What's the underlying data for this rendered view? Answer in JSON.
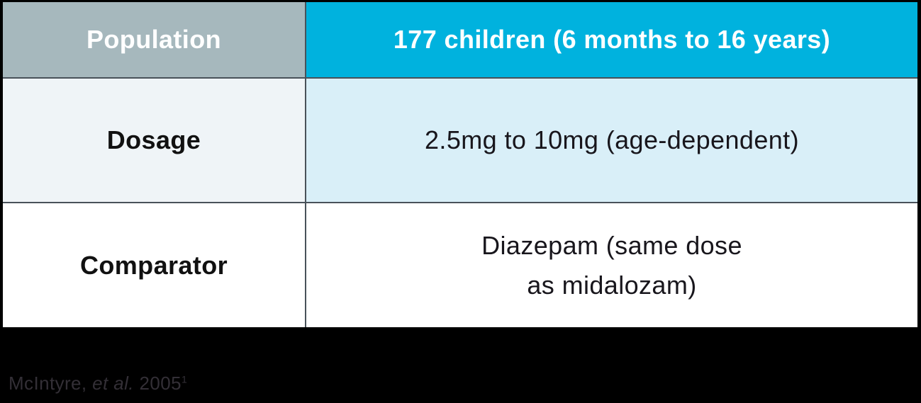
{
  "table": {
    "rows": [
      {
        "label": "Population",
        "value": "177 children (6 months to 16 years)"
      },
      {
        "label": "Dosage",
        "value": "2.5mg to 10mg (age-dependent)"
      },
      {
        "label": "Comparator",
        "value_line1": "Diazepam (same dose",
        "value_line2": "as midalozam)"
      }
    ]
  },
  "footer": {
    "citation_author": "McIntyre,",
    "citation_etal": "et al.",
    "citation_year": "2005",
    "citation_reference_superscript": "1"
  },
  "colors": {
    "header_label_bg": "#a6b8bd",
    "header_value_bg": "#00b2de",
    "row2_label_bg": "#eff4f7",
    "row2_value_bg": "#d9eff8",
    "row3_bg": "#ffffff",
    "divider": "#49525a",
    "outer_border": "#000000",
    "footer_bg": "#000000",
    "citation_text": "#332f36"
  }
}
